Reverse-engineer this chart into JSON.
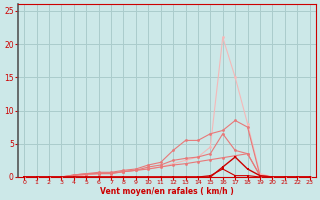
{
  "xlabel": "Vent moyen/en rafales ( km/h )",
  "xlim": [
    -0.5,
    23.5
  ],
  "ylim": [
    0,
    26
  ],
  "xticks": [
    0,
    1,
    2,
    3,
    4,
    5,
    6,
    7,
    8,
    9,
    10,
    11,
    12,
    13,
    14,
    15,
    16,
    17,
    18,
    19,
    20,
    21,
    22,
    23
  ],
  "yticks": [
    0,
    5,
    10,
    15,
    20,
    25
  ],
  "bg_color": "#cce8e8",
  "grid_color": "#aacccc",
  "lc_light": "#f5b8b8",
  "lc_mid": "#e87878",
  "lc_dark": "#cc0000",
  "lc_darkest": "#880000",
  "s_light_x": [
    0,
    1,
    2,
    3,
    4,
    5,
    6,
    7,
    8,
    9,
    10,
    11,
    12,
    13,
    14,
    15,
    16,
    17,
    18,
    19,
    20,
    21,
    22,
    23
  ],
  "s_light_y": [
    0,
    0,
    0,
    0,
    0,
    0.3,
    0.5,
    0.5,
    0.8,
    1.0,
    1.2,
    1.5,
    2.0,
    2.5,
    3.0,
    4.5,
    21.0,
    15.0,
    8.0,
    0.5,
    0.0,
    0.0,
    0.0,
    0
  ],
  "s_mid_x": [
    0,
    1,
    2,
    3,
    4,
    5,
    6,
    7,
    8,
    9,
    10,
    11,
    12,
    13,
    14,
    15,
    16,
    17,
    18,
    19,
    20,
    21,
    22,
    23
  ],
  "s_mid_y": [
    0,
    0,
    0,
    0,
    0.3,
    0.5,
    0.7,
    0.7,
    1.0,
    1.2,
    1.8,
    2.2,
    4.0,
    5.5,
    5.5,
    6.5,
    7.0,
    8.5,
    7.5,
    0.2,
    0.0,
    0.0,
    0.0,
    0
  ],
  "s_mid2_x": [
    0,
    1,
    2,
    3,
    4,
    5,
    6,
    7,
    8,
    9,
    10,
    11,
    12,
    13,
    14,
    15,
    16,
    17,
    18,
    19,
    20,
    21,
    22,
    23
  ],
  "s_mid2_y": [
    0,
    0,
    0,
    0,
    0.3,
    0.5,
    0.5,
    0.5,
    0.8,
    1.0,
    1.5,
    1.8,
    2.5,
    2.8,
    3.0,
    3.5,
    6.5,
    4.0,
    3.5,
    0.2,
    0.0,
    0.0,
    0.0,
    0
  ],
  "s_slope_x": [
    0,
    1,
    2,
    3,
    4,
    5,
    6,
    7,
    8,
    9,
    10,
    11,
    12,
    13,
    14,
    15,
    16,
    17,
    18,
    19,
    20,
    21,
    22,
    23
  ],
  "s_slope_y": [
    0,
    0,
    0,
    0,
    0.2,
    0.4,
    0.5,
    0.6,
    0.8,
    1.0,
    1.2,
    1.5,
    1.8,
    2.0,
    2.3,
    2.6,
    2.9,
    3.2,
    3.5,
    0.2,
    0.0,
    0.0,
    0.0,
    0
  ],
  "s_dark_x": [
    0,
    1,
    2,
    3,
    4,
    5,
    6,
    7,
    8,
    9,
    10,
    11,
    12,
    13,
    14,
    15,
    16,
    17,
    18,
    19,
    20,
    21,
    22,
    23
  ],
  "s_dark_y": [
    0,
    0,
    0,
    0,
    0,
    0,
    0,
    0,
    0,
    0,
    0,
    0,
    0,
    0,
    0,
    0,
    1.5,
    3.0,
    1.2,
    0.2,
    0.0,
    0.0,
    0.0,
    0
  ],
  "s_zero_x": [
    0,
    1,
    2,
    3,
    4,
    5,
    6,
    7,
    8,
    9,
    10,
    11,
    12,
    13,
    14,
    15,
    16,
    17,
    18,
    19,
    20,
    21,
    22,
    23
  ],
  "s_zero_y": [
    0,
    0,
    0,
    0,
    0,
    0,
    0,
    0,
    0,
    0,
    0,
    0,
    0,
    0,
    0,
    0.2,
    1.2,
    0.2,
    0.2,
    0.0,
    0.0,
    0.0,
    0.0,
    0
  ]
}
